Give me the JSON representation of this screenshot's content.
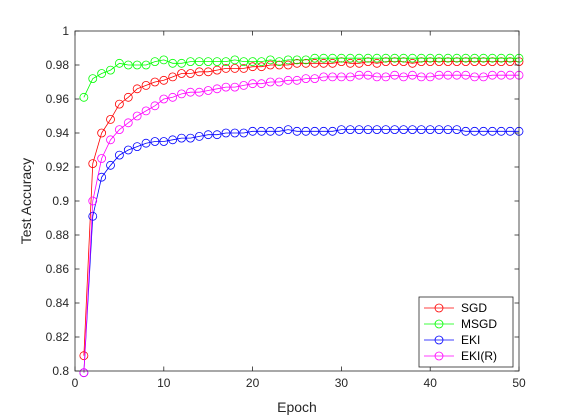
{
  "chart_data": {
    "type": "line",
    "title": "",
    "xlabel": "Epoch",
    "ylabel": "Test Accuracy",
    "xlim": [
      0,
      50
    ],
    "ylim": [
      0.8,
      1.0
    ],
    "xticks": [
      0,
      10,
      20,
      30,
      40,
      50
    ],
    "yticks": [
      0.8,
      0.82,
      0.84,
      0.86,
      0.88,
      0.9,
      0.92,
      0.94,
      0.96,
      0.98,
      1
    ],
    "xtick_labels": [
      "0",
      "10",
      "20",
      "30",
      "40",
      "50"
    ],
    "ytick_labels": [
      "0.8",
      "0.82",
      "0.84",
      "0.86",
      "0.88",
      "0.9",
      "0.92",
      "0.94",
      "0.96",
      "0.98",
      "1"
    ],
    "grid": false,
    "legend_position": "bottom-right",
    "marker": "open-circle",
    "x": [
      1,
      2,
      3,
      4,
      5,
      6,
      7,
      8,
      9,
      10,
      11,
      12,
      13,
      14,
      15,
      16,
      17,
      18,
      19,
      20,
      21,
      22,
      23,
      24,
      25,
      26,
      27,
      28,
      29,
      30,
      31,
      32,
      33,
      34,
      35,
      36,
      37,
      38,
      39,
      40,
      41,
      42,
      43,
      44,
      45,
      46,
      47,
      48,
      49,
      50
    ],
    "series": [
      {
        "name": "SGD",
        "color": "#ff0000",
        "values": [
          0.809,
          0.922,
          0.94,
          0.948,
          0.957,
          0.961,
          0.966,
          0.968,
          0.97,
          0.971,
          0.973,
          0.975,
          0.975,
          0.976,
          0.976,
          0.977,
          0.978,
          0.978,
          0.978,
          0.979,
          0.979,
          0.98,
          0.98,
          0.98,
          0.981,
          0.981,
          0.981,
          0.981,
          0.981,
          0.982,
          0.981,
          0.981,
          0.982,
          0.981,
          0.982,
          0.982,
          0.982,
          0.981,
          0.982,
          0.982,
          0.982,
          0.982,
          0.982,
          0.982,
          0.982,
          0.982,
          0.982,
          0.982,
          0.982,
          0.982
        ]
      },
      {
        "name": "MSGD",
        "color": "#00ff00",
        "values": [
          0.961,
          0.972,
          0.975,
          0.977,
          0.981,
          0.98,
          0.98,
          0.98,
          0.982,
          0.983,
          0.981,
          0.981,
          0.982,
          0.982,
          0.982,
          0.982,
          0.982,
          0.983,
          0.982,
          0.982,
          0.982,
          0.983,
          0.982,
          0.983,
          0.983,
          0.983,
          0.984,
          0.984,
          0.984,
          0.984,
          0.984,
          0.984,
          0.984,
          0.984,
          0.984,
          0.984,
          0.984,
          0.984,
          0.984,
          0.984,
          0.984,
          0.984,
          0.984,
          0.984,
          0.984,
          0.984,
          0.984,
          0.984,
          0.984,
          0.984
        ]
      },
      {
        "name": "EKI",
        "color": "#0000ff",
        "values": [
          0.799,
          0.891,
          0.914,
          0.921,
          0.927,
          0.93,
          0.932,
          0.934,
          0.935,
          0.935,
          0.936,
          0.937,
          0.937,
          0.938,
          0.939,
          0.939,
          0.94,
          0.94,
          0.94,
          0.941,
          0.941,
          0.941,
          0.941,
          0.942,
          0.941,
          0.941,
          0.941,
          0.941,
          0.941,
          0.942,
          0.942,
          0.942,
          0.942,
          0.942,
          0.942,
          0.942,
          0.942,
          0.942,
          0.942,
          0.942,
          0.942,
          0.942,
          0.942,
          0.941,
          0.941,
          0.941,
          0.941,
          0.941,
          0.941,
          0.941
        ]
      },
      {
        "name": "EKI(R)",
        "color": "#ff00ff",
        "values": [
          0.799,
          0.9,
          0.925,
          0.936,
          0.942,
          0.946,
          0.95,
          0.953,
          0.956,
          0.96,
          0.961,
          0.963,
          0.964,
          0.964,
          0.965,
          0.966,
          0.967,
          0.967,
          0.968,
          0.969,
          0.969,
          0.97,
          0.97,
          0.971,
          0.971,
          0.972,
          0.972,
          0.973,
          0.973,
          0.973,
          0.973,
          0.974,
          0.974,
          0.973,
          0.973,
          0.974,
          0.973,
          0.974,
          0.973,
          0.973,
          0.974,
          0.974,
          0.974,
          0.974,
          0.973,
          0.973,
          0.974,
          0.974,
          0.974,
          0.974
        ]
      }
    ]
  }
}
